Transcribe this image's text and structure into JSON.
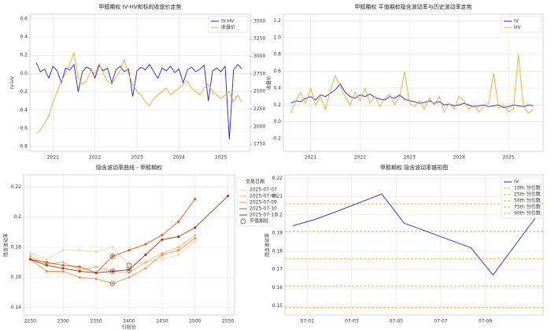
{
  "chart_data": [
    {
      "type": "line",
      "title": "甲醇期权 IV-HV和标的收盘价走势",
      "ylabel": "IV-HV",
      "y2label": "收盘价",
      "y2color": "#d62728",
      "grid": true,
      "legend": "upper right",
      "x": [
        2020.6,
        2020.7,
        2020.8,
        2020.9,
        2021.0,
        2021.1,
        2021.2,
        2021.3,
        2021.4,
        2021.5,
        2021.6,
        2021.7,
        2021.8,
        2021.9,
        2022.0,
        2022.1,
        2022.2,
        2022.3,
        2022.4,
        2022.5,
        2022.6,
        2022.7,
        2022.8,
        2022.9,
        2023.0,
        2023.1,
        2023.2,
        2023.3,
        2023.4,
        2023.5,
        2023.6,
        2023.7,
        2023.8,
        2023.9,
        2024.0,
        2024.1,
        2024.2,
        2024.3,
        2024.4,
        2024.5,
        2024.6,
        2024.7,
        2024.8,
        2024.9,
        2025.0,
        2025.1,
        2025.2,
        2025.3,
        2025.4,
        2025.5
      ],
      "xlim": [
        2020.45,
        2025.7
      ],
      "xticks": [
        2021,
        2022,
        2023,
        2024,
        2025
      ],
      "ylim": [
        -0.85,
        0.65
      ],
      "yticks": [
        -0.8,
        -0.6,
        -0.4,
        -0.2,
        {
          "value": 0,
          "label": "0.0"
        },
        0.2,
        0.4,
        0.6
      ],
      "y2lim": [
        1650,
        3600
      ],
      "y2ticks": [
        1750,
        2000,
        2250,
        2500,
        2750,
        3000,
        3250,
        3500
      ],
      "series": [
        {
          "name": "IV-HV",
          "color": "#1f1fe0",
          "values": [
            0.12,
            0.02,
            0.05,
            -0.05,
            0.08,
            0.03,
            -0.1,
            0.06,
            0.04,
            0.1,
            -0.2,
            0.02,
            0.07,
            0.05,
            -0.05,
            0.09,
            0.03,
            0.06,
            -0.1,
            0.04,
            0.08,
            0.02,
            0.05,
            -0.25,
            0.03,
            0.07,
            0.04,
            0.1,
            0.02,
            -0.05,
            0.06,
            0.03,
            0.08,
            0.01,
            0.05,
            -0.1,
            0.04,
            0.07,
            0.02,
            0.05,
            0.09,
            -0.3,
            0.03,
            0.06,
            0.02,
            0.08,
            -0.72,
            0.04,
            0.1,
            0.05
          ]
        },
        {
          "name": "收盘价",
          "color": "#f5a623",
          "axis": "y2",
          "values": [
            1900,
            1950,
            2050,
            2150,
            2350,
            2500,
            2650,
            2750,
            2900,
            3050,
            2700,
            2600,
            2650,
            2800,
            2750,
            2900,
            2750,
            2650,
            2600,
            2700,
            2800,
            2950,
            2750,
            2600,
            2500,
            2450,
            2350,
            2300,
            2400,
            2450,
            2500,
            2550,
            2450,
            2500,
            2550,
            2600,
            2650,
            2550,
            2500,
            2450,
            2550,
            2600,
            2500,
            2450,
            2400,
            2450,
            2500,
            2350,
            2450,
            2350
          ]
        }
      ]
    },
    {
      "type": "line",
      "title": "甲醇期权 平值期权隐含波动率与历史波动率走势",
      "grid": true,
      "legend": "upper right",
      "x": [
        2020.6,
        2020.7,
        2020.8,
        2020.9,
        2021.0,
        2021.1,
        2021.2,
        2021.3,
        2021.4,
        2021.5,
        2021.6,
        2021.7,
        2021.8,
        2021.9,
        2022.0,
        2022.1,
        2022.2,
        2022.3,
        2022.4,
        2022.5,
        2022.6,
        2022.7,
        2022.8,
        2022.9,
        2023.0,
        2023.1,
        2023.2,
        2023.3,
        2023.4,
        2023.5,
        2023.6,
        2023.7,
        2023.8,
        2023.9,
        2024.0,
        2024.1,
        2024.2,
        2024.3,
        2024.4,
        2024.5,
        2024.6,
        2024.7,
        2024.8,
        2024.9,
        2025.0,
        2025.1,
        2025.2,
        2025.3,
        2025.4,
        2025.5
      ],
      "xlim": [
        2020.45,
        2025.7
      ],
      "xticks": [
        2021,
        2022,
        2023,
        2024,
        2025
      ],
      "ylim": [
        -0.35,
        1.28
      ],
      "yticks": [
        -0.2,
        {
          "value": 0,
          "label": "0.0"
        },
        0.2,
        0.4,
        0.6,
        0.8,
        {
          "value": 1,
          "label": "1.0"
        },
        1.2
      ],
      "series": [
        {
          "name": "IV",
          "color": "#1f1fe0",
          "values": [
            0.22,
            0.25,
            0.24,
            0.28,
            0.3,
            0.26,
            0.32,
            0.3,
            0.34,
            0.38,
            0.45,
            0.35,
            0.3,
            0.28,
            0.32,
            0.3,
            0.33,
            0.29,
            0.27,
            0.26,
            0.3,
            0.28,
            0.32,
            0.27,
            0.25,
            0.24,
            0.22,
            0.23,
            0.25,
            0.22,
            0.24,
            0.2,
            0.21,
            0.19,
            0.2,
            0.22,
            0.2,
            0.18,
            0.19,
            0.2,
            0.18,
            0.19,
            0.2,
            0.17,
            0.18,
            0.2,
            0.19,
            0.18,
            0.2,
            0.19
          ]
        },
        {
          "name": "HV",
          "color": "#f5a623",
          "values": [
            0.1,
            0.25,
            0.35,
            0.22,
            0.4,
            0.2,
            0.3,
            0.15,
            0.38,
            0.55,
            0.42,
            0.3,
            0.2,
            0.35,
            0.25,
            0.4,
            0.22,
            0.3,
            0.18,
            0.28,
            0.33,
            0.2,
            0.3,
            0.6,
            0.22,
            0.18,
            0.25,
            0.15,
            0.28,
            0.2,
            0.3,
            0.12,
            0.22,
            0.15,
            0.3,
            0.25,
            0.15,
            0.2,
            0.12,
            0.18,
            0.22,
            0.58,
            0.16,
            0.2,
            0.12,
            0.15,
            0.8,
            0.2,
            0.1,
            0.15
          ]
        }
      ]
    },
    {
      "type": "line",
      "title": "隐含波动率曲线 - 甲醇期权",
      "xlabel": "行权价",
      "ylabel": "隐含波动率",
      "grid": true,
      "legend": "outside right",
      "legend_title": "交易日期",
      "xlim": [
        2240,
        2560
      ],
      "xticks": [
        2250,
        2300,
        2350,
        2400,
        2450,
        2500,
        2550
      ],
      "ylim": [
        0.135,
        0.228
      ],
      "yticks": [
        0.14,
        0.16,
        0.18,
        0.2,
        0.22
      ],
      "series": [
        {
          "name": "2025-07-07",
          "color": "#fdd0a2",
          "markers": true,
          "x": [
            2250,
            2275,
            2300,
            2325,
            2350,
            2375,
            2400,
            2425,
            2450,
            2475,
            2500
          ],
          "values": [
            0.176,
            0.172,
            0.178,
            0.178,
            0.177,
            0.18,
            0.168,
            0.17,
            0.172,
            0.175,
            0.184
          ]
        },
        {
          "name": "2025-07-08",
          "color": "#fdae6b",
          "markers": true,
          "x": [
            2250,
            2275,
            2300,
            2325,
            2350,
            2375,
            2400,
            2425,
            2450,
            2475,
            2500
          ],
          "values": [
            0.174,
            0.169,
            0.17,
            0.165,
            0.167,
            0.164,
            0.163,
            0.17,
            0.176,
            0.18,
            0.188
          ]
        },
        {
          "name": "2025-07-09",
          "color": "#fd8d3c",
          "markers": true,
          "x": [
            2250,
            2275,
            2300,
            2325,
            2350,
            2375,
            2400,
            2425,
            2450,
            2475,
            2500
          ],
          "values": [
            0.172,
            0.164,
            0.164,
            0.16,
            0.159,
            0.156,
            0.16,
            0.166,
            0.175,
            0.178,
            0.186
          ]
        },
        {
          "name": "2025-07-10",
          "color": "#e6550d",
          "markers": true,
          "x": [
            2250,
            2275,
            2300,
            2325,
            2350,
            2375,
            2400,
            2425,
            2450,
            2475,
            2500
          ],
          "values": [
            0.172,
            0.17,
            0.168,
            0.167,
            0.163,
            0.174,
            0.178,
            0.182,
            0.188,
            0.197,
            0.212
          ]
        },
        {
          "name": "2025-07-11",
          "color": "#a63603",
          "markers": true,
          "x": [
            2250,
            2275,
            2300,
            2325,
            2350,
            2375,
            2400,
            2425,
            2450,
            2475,
            2500,
            2550
          ],
          "values": [
            0.172,
            0.168,
            0.166,
            0.164,
            0.163,
            0.164,
            0.165,
            0.175,
            0.185,
            0.187,
            0.193,
            0.214
          ]
        },
        {
          "name": "平值期权",
          "color": "#555555",
          "style": "markers",
          "x": [
            2375,
            2375,
            2375,
            2400,
            2400
          ],
          "values": [
            0.174,
            0.164,
            0.156,
            0.168,
            0.165
          ]
        }
      ]
    },
    {
      "type": "line",
      "title": "甲醇期权 隐含波动率锥形图",
      "ylabel": "隐含波动率",
      "grid": true,
      "legend": "upper right",
      "x": [
        0.35,
        1.35,
        2.35,
        4.35,
        5.35,
        8.35,
        9.35,
        11.35
      ],
      "xlim": [
        0,
        11.6
      ],
      "xticks": [
        {
          "value": 1,
          "label": "07-01"
        },
        {
          "value": 3,
          "label": "07-03"
        },
        {
          "value": 5,
          "label": "07-05"
        },
        {
          "value": 7,
          "label": "07-07"
        },
        {
          "value": 9,
          "label": "07-09"
        }
      ],
      "ylim": [
        0.145,
        0.222
      ],
      "yticks": [
        0.15,
        0.16,
        0.17,
        0.18,
        0.19,
        0.2,
        0.21,
        0.22
      ],
      "series": [
        {
          "name": "IV",
          "color": "#1f1fe0",
          "values": [
            0.194,
            0.1975,
            0.202,
            0.2115,
            0.1955,
            0.182,
            0.167,
            0.2
          ]
        }
      ],
      "reference_lines": [
        {
          "name": "10th 分位数",
          "value": 0.149,
          "color": "#f5a623"
        },
        {
          "name": "25th 分位数",
          "value": 0.161,
          "color": "#f5a623"
        },
        {
          "name": "50th 分位数",
          "value": 0.176,
          "color": "#f5a623"
        },
        {
          "name": "75th 分位数",
          "value": 0.191,
          "color": "#f5a623"
        },
        {
          "name": "90th 分位数",
          "value": 0.206,
          "color": "#f5a623"
        }
      ]
    }
  ]
}
